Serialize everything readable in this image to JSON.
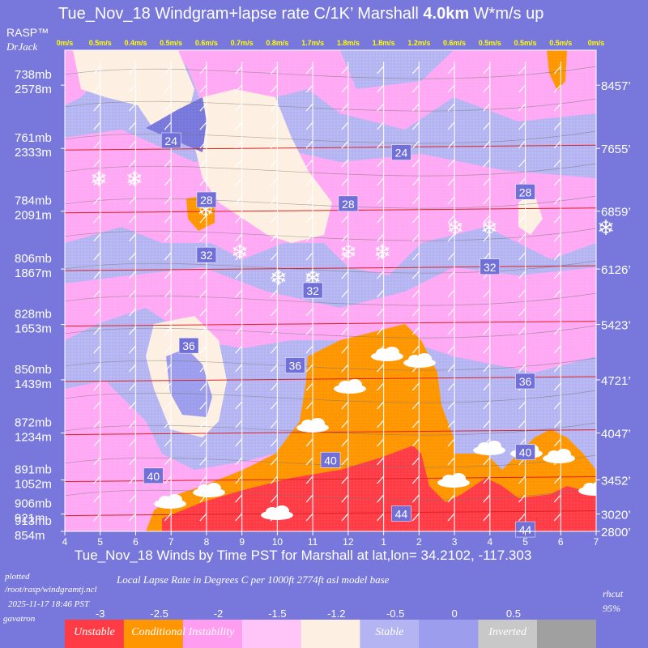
{
  "chart_data": {
    "type": "heatmap",
    "title": {
      "prefix": "Tue_Nov_18 Windgram+lapse rate C/1K’  Marshall ",
      "bold": "4.0km",
      "suffix": "  W*m/s up"
    },
    "brand": [
      "RASP™",
      "DrJack"
    ],
    "xlabel": "Tue_Nov_18 Winds by Time PST for Marshall at lat,lon= 34.2102, -117.303",
    "x_ticks": [
      "4",
      "5",
      "6",
      "7",
      "8",
      "9",
      "10",
      "11",
      "12",
      "1",
      "2",
      "3",
      "4",
      "5",
      "6",
      "7"
    ],
    "wstar_up": [
      "0m/s",
      "0.5m/s",
      "0.4m/s",
      "0.5m/s",
      "0.6m/s",
      "0.7m/s",
      "0.8m/s",
      "1.7m/s",
      "1.8m/s",
      "1.8m/s",
      "1.2m/s",
      "0.6m/s",
      "0.5m/s",
      "0.5m/s",
      "0.5m/s",
      "0m/s"
    ],
    "pressure_levels": [
      {
        "mb": "738mb",
        "m": "2578m"
      },
      {
        "mb": "761mb",
        "m": "2333m"
      },
      {
        "mb": "784mb",
        "m": "2091m"
      },
      {
        "mb": "806mb",
        "m": "1867m"
      },
      {
        "mb": "828mb",
        "m": "1653m"
      },
      {
        "mb": "850mb",
        "m": "1439m"
      },
      {
        "mb": "872mb",
        "m": "1234m"
      },
      {
        "mb": "891mb",
        "m": "1052m"
      },
      {
        "mb": "906mb",
        "m": "921m"
      },
      {
        "mb": "913mb",
        "m": "854m"
      }
    ],
    "altitude_ticks_ft": [
      "8457’",
      "7655’",
      "6859’",
      "6126’",
      "5423’",
      "4721’",
      "4047’",
      "3452’",
      "3020’",
      "2800’"
    ],
    "temp_labels": [
      {
        "v": "24",
        "t": 7.0,
        "ft": 7750
      },
      {
        "v": "24",
        "t": 13.5,
        "ft": 7600
      },
      {
        "v": "28",
        "t": 8.0,
        "ft": 7000
      },
      {
        "v": "28",
        "t": 12.0,
        "ft": 6950
      },
      {
        "v": "28",
        "t": 17.0,
        "ft": 7100
      },
      {
        "v": "32",
        "t": 8.0,
        "ft": 6300
      },
      {
        "v": "32",
        "t": 11.0,
        "ft": 5850
      },
      {
        "v": "32",
        "t": 16.0,
        "ft": 6150
      },
      {
        "v": "36",
        "t": 7.5,
        "ft": 5150
      },
      {
        "v": "36",
        "t": 10.5,
        "ft": 4900
      },
      {
        "v": "36",
        "t": 17.0,
        "ft": 4700
      },
      {
        "v": "40",
        "t": 6.5,
        "ft": 3500
      },
      {
        "v": "40",
        "t": 11.5,
        "ft": 3700
      },
      {
        "v": "40",
        "t": 17.0,
        "ft": 3800
      },
      {
        "v": "44",
        "t": 13.5,
        "ft": 3020
      },
      {
        "v": "44",
        "t": 17.0,
        "ft": 2820
      }
    ],
    "footer": {
      "plotted": "plotted",
      "path": "/root/rasp/windgramtj.ncl",
      "datetime": "2025-11-17 18:46 PST",
      "user": "gavatron",
      "note": "Local Lapse Rate in Degrees C per 1000ft  2774ft asl model base",
      "rhcut": "rhcut",
      "rh_value": "95%"
    },
    "legend": {
      "ticks": [
        "-3",
        "-2.5",
        "-2",
        "-1.5",
        "-1.2",
        "-0.5",
        "0",
        "0.5"
      ],
      "boxes": [
        {
          "label": "Unstable",
          "color": "#ff3c46"
        },
        {
          "label": "Conditional Instability",
          "color": "#ff9600"
        },
        {
          "label": "",
          "color": "#ff9ef0"
        },
        {
          "label": "",
          "color": "#ffc4f8"
        },
        {
          "label": "",
          "color": "#fdf0e2"
        },
        {
          "label": "Stable",
          "color": "#b4b4f2"
        },
        {
          "label": "",
          "color": "#9d9dee"
        },
        {
          "label": "Inverted",
          "color": "#c8c8c8"
        },
        {
          "label": "",
          "color": "#a0a0a0"
        }
      ]
    },
    "x_range": [
      4,
      19
    ],
    "y_range_ft": [
      2800,
      8900
    ],
    "colors": {
      "background": "#7878dc",
      "stable": "#b4b4f2",
      "pink": "#ffa8f4",
      "orange": "#ff9600",
      "red": "#ff3c46",
      "cream": "#fdf0e2",
      "wstar": "#ffff00"
    }
  }
}
